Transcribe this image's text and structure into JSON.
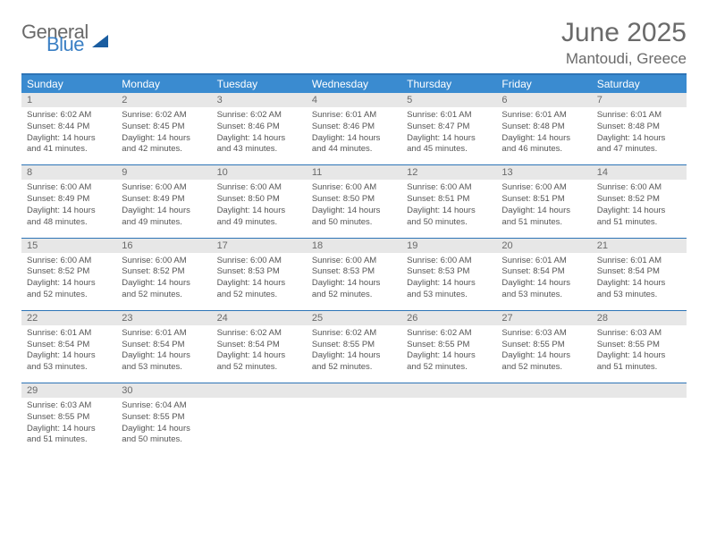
{
  "logo": {
    "word1": "General",
    "word2": "Blue"
  },
  "title": "June 2025",
  "location": "Mantoudi, Greece",
  "dayNames": [
    "Sunday",
    "Monday",
    "Tuesday",
    "Wednesday",
    "Thursday",
    "Friday",
    "Saturday"
  ],
  "colors": {
    "headerBar": "#3a8bd0",
    "ruleLine": "#2d74b6",
    "dayNumBg": "#e7e7e7",
    "text": "#555555",
    "logoBlue": "#3a7fc4"
  },
  "weeks": [
    [
      {
        "n": "1",
        "sr": "6:02 AM",
        "ss": "8:44 PM",
        "dl": "14 hours and 41 minutes."
      },
      {
        "n": "2",
        "sr": "6:02 AM",
        "ss": "8:45 PM",
        "dl": "14 hours and 42 minutes."
      },
      {
        "n": "3",
        "sr": "6:02 AM",
        "ss": "8:46 PM",
        "dl": "14 hours and 43 minutes."
      },
      {
        "n": "4",
        "sr": "6:01 AM",
        "ss": "8:46 PM",
        "dl": "14 hours and 44 minutes."
      },
      {
        "n": "5",
        "sr": "6:01 AM",
        "ss": "8:47 PM",
        "dl": "14 hours and 45 minutes."
      },
      {
        "n": "6",
        "sr": "6:01 AM",
        "ss": "8:48 PM",
        "dl": "14 hours and 46 minutes."
      },
      {
        "n": "7",
        "sr": "6:01 AM",
        "ss": "8:48 PM",
        "dl": "14 hours and 47 minutes."
      }
    ],
    [
      {
        "n": "8",
        "sr": "6:00 AM",
        "ss": "8:49 PM",
        "dl": "14 hours and 48 minutes."
      },
      {
        "n": "9",
        "sr": "6:00 AM",
        "ss": "8:49 PM",
        "dl": "14 hours and 49 minutes."
      },
      {
        "n": "10",
        "sr": "6:00 AM",
        "ss": "8:50 PM",
        "dl": "14 hours and 49 minutes."
      },
      {
        "n": "11",
        "sr": "6:00 AM",
        "ss": "8:50 PM",
        "dl": "14 hours and 50 minutes."
      },
      {
        "n": "12",
        "sr": "6:00 AM",
        "ss": "8:51 PM",
        "dl": "14 hours and 50 minutes."
      },
      {
        "n": "13",
        "sr": "6:00 AM",
        "ss": "8:51 PM",
        "dl": "14 hours and 51 minutes."
      },
      {
        "n": "14",
        "sr": "6:00 AM",
        "ss": "8:52 PM",
        "dl": "14 hours and 51 minutes."
      }
    ],
    [
      {
        "n": "15",
        "sr": "6:00 AM",
        "ss": "8:52 PM",
        "dl": "14 hours and 52 minutes."
      },
      {
        "n": "16",
        "sr": "6:00 AM",
        "ss": "8:52 PM",
        "dl": "14 hours and 52 minutes."
      },
      {
        "n": "17",
        "sr": "6:00 AM",
        "ss": "8:53 PM",
        "dl": "14 hours and 52 minutes."
      },
      {
        "n": "18",
        "sr": "6:00 AM",
        "ss": "8:53 PM",
        "dl": "14 hours and 52 minutes."
      },
      {
        "n": "19",
        "sr": "6:00 AM",
        "ss": "8:53 PM",
        "dl": "14 hours and 53 minutes."
      },
      {
        "n": "20",
        "sr": "6:01 AM",
        "ss": "8:54 PM",
        "dl": "14 hours and 53 minutes."
      },
      {
        "n": "21",
        "sr": "6:01 AM",
        "ss": "8:54 PM",
        "dl": "14 hours and 53 minutes."
      }
    ],
    [
      {
        "n": "22",
        "sr": "6:01 AM",
        "ss": "8:54 PM",
        "dl": "14 hours and 53 minutes."
      },
      {
        "n": "23",
        "sr": "6:01 AM",
        "ss": "8:54 PM",
        "dl": "14 hours and 53 minutes."
      },
      {
        "n": "24",
        "sr": "6:02 AM",
        "ss": "8:54 PM",
        "dl": "14 hours and 52 minutes."
      },
      {
        "n": "25",
        "sr": "6:02 AM",
        "ss": "8:55 PM",
        "dl": "14 hours and 52 minutes."
      },
      {
        "n": "26",
        "sr": "6:02 AM",
        "ss": "8:55 PM",
        "dl": "14 hours and 52 minutes."
      },
      {
        "n": "27",
        "sr": "6:03 AM",
        "ss": "8:55 PM",
        "dl": "14 hours and 52 minutes."
      },
      {
        "n": "28",
        "sr": "6:03 AM",
        "ss": "8:55 PM",
        "dl": "14 hours and 51 minutes."
      }
    ],
    [
      {
        "n": "29",
        "sr": "6:03 AM",
        "ss": "8:55 PM",
        "dl": "14 hours and 51 minutes."
      },
      {
        "n": "30",
        "sr": "6:04 AM",
        "ss": "8:55 PM",
        "dl": "14 hours and 50 minutes."
      },
      null,
      null,
      null,
      null,
      null
    ]
  ],
  "labels": {
    "sunrise": "Sunrise:",
    "sunset": "Sunset:",
    "daylight": "Daylight:"
  }
}
